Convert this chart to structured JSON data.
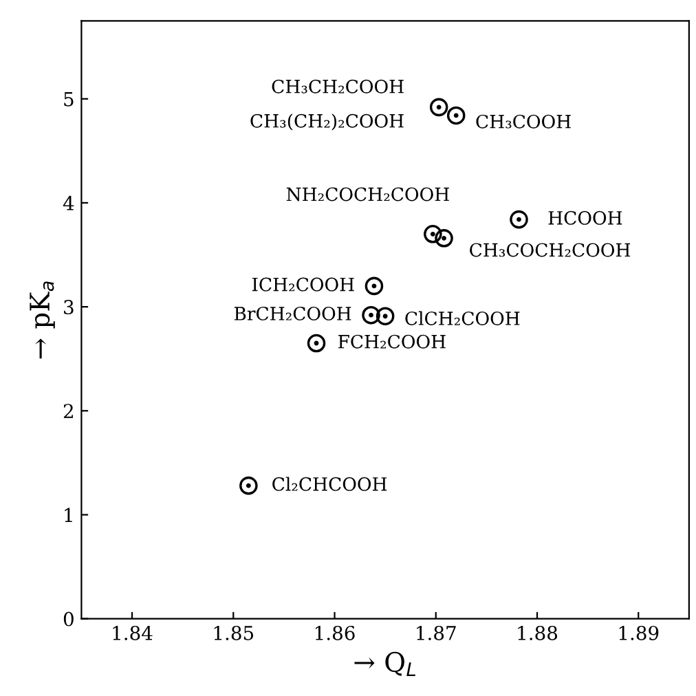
{
  "chart_data": {
    "type": "scatter",
    "xlabel": "→ Q$_{L}$",
    "ylabel": "→ pK$_{a}$",
    "x": [
      1.8703,
      1.872,
      1.8697,
      1.8782,
      1.8708,
      1.8639,
      1.8636,
      1.865,
      1.8582,
      1.8515
    ],
    "values": [
      4.92,
      4.84,
      3.7,
      3.84,
      3.66,
      3.2,
      2.92,
      2.91,
      2.65,
      1.28
    ],
    "color": "#000000",
    "marker": "circle",
    "xlim": [
      1.835,
      1.895
    ],
    "xticks": [
      1.84,
      1.85,
      1.86,
      1.87,
      1.88,
      1.89
    ],
    "ylim": [
      0,
      5.75
    ],
    "yticks": [
      0,
      1,
      2,
      3,
      4,
      5
    ],
    "grid": false,
    "legend": false,
    "annotations": [
      {
        "text": "CH₃CH₂COOH",
        "x": 1.8703,
        "y": 4.92
      },
      {
        "text": "CH₃(CH₂)₂COOH",
        "x": 1.8703,
        "y": 4.92
      },
      {
        "text": "CH₃COOH",
        "x": 1.872,
        "y": 4.84
      },
      {
        "text": "NH₂COCH₂COOH",
        "x": 1.8697,
        "y": 3.7
      },
      {
        "text": "HCOOH",
        "x": 1.8782,
        "y": 3.84
      },
      {
        "text": "CH₃COCH₂COOH",
        "x": 1.8708,
        "y": 3.66
      },
      {
        "text": "ICH₂COOH",
        "x": 1.8639,
        "y": 3.2
      },
      {
        "text": "BrCH₂COOH",
        "x": 1.8636,
        "y": 2.92
      },
      {
        "text": "ClCH₂COOH",
        "x": 1.865,
        "y": 2.91
      },
      {
        "text": "FCH₂COOH",
        "x": 1.8582,
        "y": 2.65
      },
      {
        "text": "Cl₂CHCOOH",
        "x": 1.8515,
        "y": 1.28
      }
    ]
  }
}
